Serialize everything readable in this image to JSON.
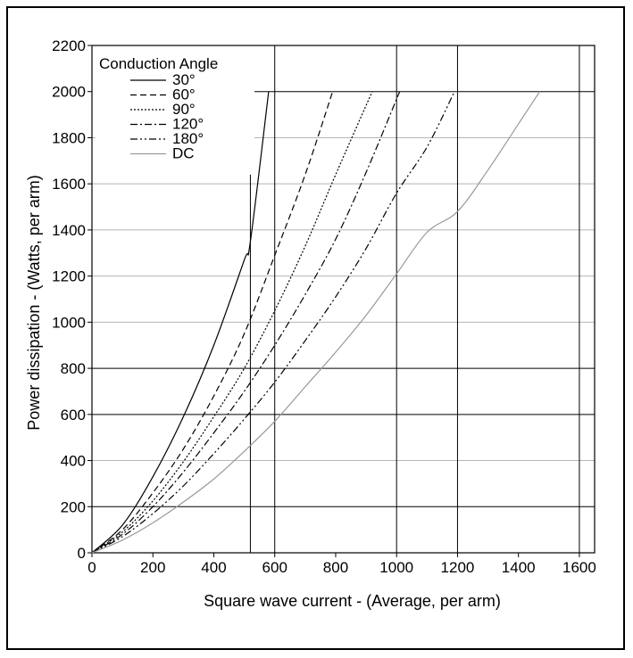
{
  "chart_data": {
    "type": "line",
    "title": "",
    "xlabel": "Square wave current - (Average, per arm)",
    "ylabel": "Power dissipation - (Watts, per arm)",
    "xlim": [
      0,
      1650
    ],
    "ylim": [
      0,
      2200
    ],
    "xticks": [
      0,
      200,
      400,
      600,
      800,
      1000,
      1200,
      1400,
      1600
    ],
    "yticks": [
      0,
      200,
      400,
      600,
      800,
      1000,
      1200,
      1400,
      1600,
      1800,
      2000,
      2200
    ],
    "grid_lines": {
      "dark_vertical": [
        520,
        600,
        1000,
        1200,
        1600
      ],
      "dark_horizontal": [
        200,
        600,
        800,
        2000
      ],
      "light_horizontal": [
        400,
        1000,
        1200,
        1400,
        1600,
        1800
      ]
    },
    "legend": {
      "title": "Conduction Angle",
      "placement": "top-left"
    },
    "series": [
      {
        "name": "30°",
        "style": "solid",
        "color": "#000000",
        "points": [
          [
            0,
            0
          ],
          [
            100,
            120
          ],
          [
            200,
            330
          ],
          [
            300,
            590
          ],
          [
            400,
            900
          ],
          [
            500,
            1270
          ],
          [
            520,
            1350
          ],
          [
            580,
            2000
          ]
        ]
      },
      {
        "name": "60°",
        "style": "dashed",
        "color": "#000000",
        "points": [
          [
            0,
            0
          ],
          [
            100,
            100
          ],
          [
            200,
            260
          ],
          [
            300,
            450
          ],
          [
            400,
            680
          ],
          [
            500,
            950
          ],
          [
            600,
            1290
          ],
          [
            700,
            1640
          ],
          [
            790,
            2000
          ]
        ]
      },
      {
        "name": "90°",
        "style": "dotted",
        "color": "#000000",
        "points": [
          [
            0,
            0
          ],
          [
            100,
            90
          ],
          [
            200,
            225
          ],
          [
            300,
            395
          ],
          [
            400,
            590
          ],
          [
            500,
            800
          ],
          [
            600,
            1050
          ],
          [
            700,
            1330
          ],
          [
            800,
            1640
          ],
          [
            920,
            2000
          ]
        ]
      },
      {
        "name": "120°",
        "style": "dash-dot",
        "color": "#000000",
        "points": [
          [
            0,
            0
          ],
          [
            100,
            80
          ],
          [
            200,
            200
          ],
          [
            300,
            350
          ],
          [
            400,
            520
          ],
          [
            500,
            700
          ],
          [
            600,
            900
          ],
          [
            700,
            1120
          ],
          [
            800,
            1360
          ],
          [
            900,
            1650
          ],
          [
            1010,
            2000
          ]
        ]
      },
      {
        "name": "180°",
        "style": "dash-dot-dot",
        "color": "#000000",
        "points": [
          [
            0,
            0
          ],
          [
            100,
            70
          ],
          [
            200,
            170
          ],
          [
            300,
            290
          ],
          [
            400,
            430
          ],
          [
            500,
            580
          ],
          [
            600,
            740
          ],
          [
            700,
            920
          ],
          [
            800,
            1110
          ],
          [
            900,
            1320
          ],
          [
            1000,
            1560
          ],
          [
            1100,
            1760
          ],
          [
            1190,
            2000
          ]
        ]
      },
      {
        "name": "DC",
        "style": "solid",
        "color": "#999999",
        "points": [
          [
            0,
            0
          ],
          [
            100,
            55
          ],
          [
            200,
            130
          ],
          [
            300,
            220
          ],
          [
            400,
            320
          ],
          [
            500,
            440
          ],
          [
            600,
            570
          ],
          [
            700,
            720
          ],
          [
            800,
            870
          ],
          [
            900,
            1030
          ],
          [
            1000,
            1210
          ],
          [
            1100,
            1390
          ],
          [
            1200,
            1480
          ],
          [
            1300,
            1660
          ],
          [
            1400,
            1860
          ],
          [
            1470,
            2000
          ]
        ]
      }
    ]
  }
}
